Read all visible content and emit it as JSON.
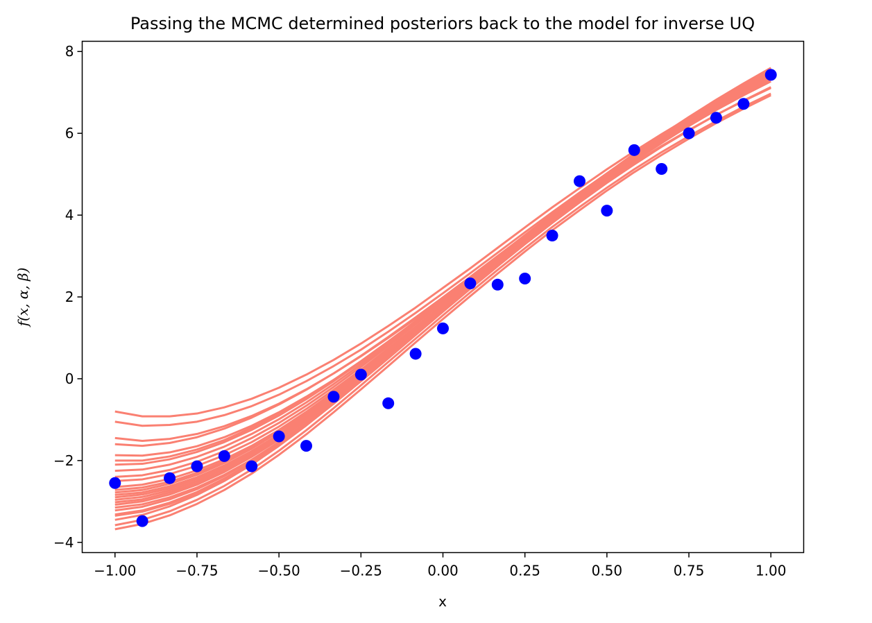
{
  "chart_data": {
    "type": "line",
    "title": "Passing the MCMC determined posteriors back to the model for inverse UQ",
    "xlabel": "x",
    "ylabel": "f(x, α, β)",
    "xlim": [
      -1.1,
      1.1
    ],
    "ylim": [
      -4.25,
      8.25
    ],
    "x_ticks": [
      -1.0,
      -0.75,
      -0.5,
      -0.25,
      0.0,
      0.25,
      0.5,
      0.75,
      1.0
    ],
    "x_tick_labels": [
      "−1.00",
      "−0.75",
      "−0.50",
      "−0.25",
      "0.00",
      "0.25",
      "0.50",
      "0.75",
      "1.00"
    ],
    "y_ticks": [
      -4,
      -2,
      0,
      2,
      4,
      6,
      8
    ],
    "y_tick_labels": [
      "−4",
      "−2",
      "0",
      "2",
      "4",
      "6",
      "8"
    ],
    "grid": false,
    "colors": {
      "posterior_curves": "#fa8072",
      "observations": "#0000ff"
    },
    "x": [
      -1.0,
      -0.9167,
      -0.8333,
      -0.75,
      -0.6667,
      -0.5833,
      -0.5,
      -0.4167,
      -0.3333,
      -0.25,
      -0.1667,
      -0.0833,
      0.0,
      0.0833,
      0.1667,
      0.25,
      0.3333,
      0.4167,
      0.5,
      0.5833,
      0.6667,
      0.75,
      0.8333,
      0.9167,
      1.0
    ],
    "series": [
      {
        "kind": "scatter",
        "values": [
          -2.55,
          -3.48,
          -2.43,
          -2.14,
          -1.89,
          -2.14,
          -1.41,
          -1.64,
          -0.44,
          0.1,
          -0.6,
          0.61,
          1.23,
          2.33,
          2.3,
          2.45,
          3.5,
          4.83,
          4.11,
          5.59,
          5.13,
          6.0,
          6.38,
          6.72,
          7.43
        ]
      },
      {
        "kind": "line",
        "values": [
          -0.8,
          -0.92,
          -0.92,
          -0.85,
          -0.7,
          -0.49,
          -0.22,
          0.1,
          0.46,
          0.86,
          1.29,
          1.74,
          2.22,
          2.7,
          3.2,
          3.7,
          4.19,
          4.66,
          5.12,
          5.56,
          5.98,
          6.38,
          6.76,
          7.12,
          7.46
        ]
      },
      {
        "kind": "line",
        "values": [
          -1.05,
          -1.15,
          -1.13,
          -1.05,
          -0.89,
          -0.67,
          -0.39,
          -0.06,
          0.31,
          0.71,
          1.15,
          1.61,
          2.09,
          2.58,
          3.08,
          3.58,
          4.07,
          4.55,
          5.02,
          5.47,
          5.9,
          6.31,
          6.7,
          7.07,
          7.42
        ]
      },
      {
        "kind": "line",
        "values": [
          -1.45,
          -1.52,
          -1.47,
          -1.35,
          -1.16,
          -0.91,
          -0.61,
          -0.26,
          0.13,
          0.55,
          1.0,
          1.47,
          1.96,
          2.45,
          2.95,
          3.45,
          3.95,
          4.43,
          4.9,
          5.36,
          5.79,
          6.21,
          6.61,
          6.99,
          7.35
        ]
      },
      {
        "kind": "line",
        "values": [
          -1.6,
          -1.64,
          -1.57,
          -1.43,
          -1.22,
          -0.95,
          -0.63,
          -0.27,
          0.13,
          0.56,
          1.02,
          1.5,
          1.99,
          2.49,
          3.0,
          3.5,
          4.0,
          4.49,
          4.97,
          5.43,
          5.88,
          6.31,
          6.72,
          7.11,
          7.48
        ]
      },
      {
        "kind": "line",
        "values": [
          -1.87,
          -1.88,
          -1.8,
          -1.65,
          -1.43,
          -1.15,
          -0.82,
          -0.44,
          -0.03,
          0.41,
          0.88,
          1.37,
          1.87,
          2.38,
          2.89,
          3.4,
          3.91,
          4.41,
          4.9,
          5.38,
          5.84,
          6.28,
          6.71,
          7.12,
          7.5
        ]
      },
      {
        "kind": "line",
        "values": [
          -2.0,
          -2.0,
          -1.9,
          -1.73,
          -1.5,
          -1.2,
          -0.86,
          -0.46,
          -0.03,
          0.43,
          0.91,
          1.41,
          1.93,
          2.45,
          2.97,
          3.49,
          4.0,
          4.5,
          4.99,
          5.46,
          5.91,
          6.34,
          6.75,
          7.14,
          7.5
        ]
      },
      {
        "kind": "line",
        "values": [
          -2.1,
          -2.08,
          -1.97,
          -1.79,
          -1.55,
          -1.25,
          -0.9,
          -0.5,
          -0.06,
          0.41,
          0.9,
          1.41,
          1.93,
          2.46,
          2.99,
          3.51,
          4.02,
          4.52,
          5.0,
          5.46,
          5.9,
          6.32,
          6.71,
          7.08,
          7.42
        ]
      },
      {
        "kind": "line",
        "values": [
          -2.25,
          -2.22,
          -2.1,
          -1.91,
          -1.66,
          -1.35,
          -0.99,
          -0.58,
          -0.13,
          0.35,
          0.85,
          1.37,
          1.9,
          2.44,
          2.97,
          3.5,
          4.02,
          4.53,
          5.02,
          5.5,
          5.96,
          6.4,
          6.82,
          7.22,
          7.6
        ]
      },
      {
        "kind": "line",
        "values": [
          -2.4,
          -2.36,
          -2.23,
          -2.03,
          -1.77,
          -1.45,
          -1.08,
          -0.66,
          -0.2,
          0.29,
          0.8,
          1.33,
          1.87,
          2.41,
          2.95,
          3.48,
          4.0,
          4.51,
          5.0,
          5.47,
          5.92,
          6.35,
          6.76,
          7.15,
          7.52
        ]
      },
      {
        "kind": "line",
        "values": [
          -2.5,
          -2.46,
          -2.33,
          -2.13,
          -1.87,
          -1.55,
          -1.17,
          -0.74,
          -0.27,
          0.22,
          0.74,
          1.27,
          1.81,
          2.35,
          2.89,
          3.42,
          3.94,
          4.45,
          4.94,
          5.42,
          5.88,
          6.32,
          6.74,
          7.14,
          7.52
        ]
      },
      {
        "kind": "line",
        "values": [
          -2.72,
          -2.66,
          -2.52,
          -2.3,
          -2.02,
          -1.68,
          -1.28,
          -0.83,
          -0.35,
          0.16,
          0.69,
          1.23,
          1.78,
          2.33,
          2.87,
          3.41,
          3.93,
          4.44,
          4.93,
          5.41,
          5.86,
          6.3,
          6.71,
          7.1,
          7.47
        ]
      },
      {
        "kind": "line",
        "values": [
          -2.78,
          -2.72,
          -2.57,
          -2.35,
          -2.06,
          -1.71,
          -1.3,
          -0.85,
          -0.36,
          0.16,
          0.7,
          1.25,
          1.8,
          2.36,
          2.91,
          3.45,
          3.98,
          4.49,
          4.99,
          5.47,
          5.93,
          6.37,
          6.79,
          7.19,
          7.56
        ]
      },
      {
        "kind": "line",
        "values": [
          -2.84,
          -2.78,
          -2.63,
          -2.41,
          -2.12,
          -1.77,
          -1.36,
          -0.9,
          -0.41,
          0.11,
          0.65,
          1.2,
          1.76,
          2.31,
          2.86,
          3.4,
          3.93,
          4.44,
          4.94,
          5.41,
          5.87,
          6.31,
          6.72,
          7.11,
          7.48
        ]
      },
      {
        "kind": "line",
        "values": [
          -2.9,
          -2.83,
          -2.68,
          -2.45,
          -2.15,
          -1.79,
          -1.38,
          -0.92,
          -0.42,
          0.1,
          0.64,
          1.19,
          1.75,
          2.3,
          2.85,
          3.39,
          3.91,
          4.42,
          4.91,
          5.38,
          5.83,
          6.26,
          6.66,
          7.04,
          7.4
        ]
      },
      {
        "kind": "line",
        "values": [
          -2.96,
          -2.89,
          -2.73,
          -2.5,
          -2.2,
          -1.84,
          -1.42,
          -0.96,
          -0.46,
          0.06,
          0.61,
          1.16,
          1.72,
          2.28,
          2.83,
          3.37,
          3.9,
          4.41,
          4.91,
          5.38,
          5.84,
          6.27,
          6.68,
          7.07,
          7.43
        ]
      },
      {
        "kind": "line",
        "values": [
          -3.02,
          -2.95,
          -2.78,
          -2.55,
          -2.25,
          -1.88,
          -1.46,
          -0.99,
          -0.49,
          0.04,
          0.58,
          1.14,
          1.7,
          2.26,
          2.81,
          3.35,
          3.87,
          4.38,
          4.87,
          5.34,
          5.79,
          6.22,
          6.62,
          7.0,
          7.36
        ]
      },
      {
        "kind": "line",
        "values": [
          -3.08,
          -3.0,
          -2.83,
          -2.59,
          -2.28,
          -1.91,
          -1.49,
          -1.01,
          -0.5,
          0.03,
          0.58,
          1.14,
          1.7,
          2.26,
          2.81,
          3.35,
          3.88,
          4.39,
          4.88,
          5.35,
          5.8,
          6.23,
          6.63,
          7.02,
          7.38
        ]
      },
      {
        "kind": "line",
        "values": [
          -3.15,
          -3.07,
          -2.9,
          -2.66,
          -2.35,
          -1.98,
          -1.55,
          -1.07,
          -0.56,
          -0.02,
          0.53,
          1.09,
          1.66,
          2.22,
          2.78,
          3.32,
          3.85,
          4.36,
          4.85,
          5.32,
          5.76,
          6.19,
          6.59,
          6.97,
          7.32
        ]
      },
      {
        "kind": "line",
        "values": [
          -3.22,
          -3.13,
          -2.95,
          -2.7,
          -2.38,
          -2.0,
          -1.56,
          -1.07,
          -0.55,
          -0.01,
          0.55,
          1.12,
          1.69,
          2.26,
          2.82,
          3.37,
          3.9,
          4.41,
          4.9,
          5.37,
          5.82,
          6.24,
          6.65,
          7.03,
          7.39
        ]
      },
      {
        "kind": "line",
        "values": [
          -3.32,
          -3.22,
          -3.03,
          -2.77,
          -2.44,
          -2.05,
          -1.6,
          -1.11,
          -0.58,
          -0.03,
          0.53,
          1.1,
          1.67,
          2.24,
          2.8,
          3.34,
          3.87,
          4.38,
          4.87,
          5.33,
          5.77,
          6.18,
          6.57,
          6.93,
          7.27
        ]
      },
      {
        "kind": "line",
        "values": [
          -3.45,
          -3.33,
          -3.12,
          -2.84,
          -2.5,
          -2.1,
          -1.64,
          -1.14,
          -0.6,
          -0.04,
          0.53,
          1.1,
          1.67,
          2.24,
          2.79,
          3.33,
          3.85,
          4.35,
          4.82,
          5.27,
          5.69,
          6.08,
          6.45,
          6.79,
          7.11
        ]
      },
      {
        "kind": "line",
        "values": [
          -3.58,
          -3.45,
          -3.24,
          -2.96,
          -2.62,
          -2.22,
          -1.76,
          -1.26,
          -0.72,
          -0.16,
          0.41,
          0.98,
          1.55,
          2.11,
          2.66,
          3.19,
          3.71,
          4.2,
          4.67,
          5.12,
          5.54,
          5.93,
          6.3,
          6.65,
          6.97
        ]
      },
      {
        "kind": "line",
        "values": [
          -3.68,
          -3.55,
          -3.34,
          -3.06,
          -2.72,
          -2.32,
          -1.86,
          -1.36,
          -0.82,
          -0.26,
          0.31,
          0.89,
          1.46,
          2.02,
          2.57,
          3.11,
          3.63,
          4.12,
          4.6,
          5.05,
          5.47,
          5.87,
          6.25,
          6.6,
          6.93
        ]
      },
      {
        "kind": "line",
        "values": [
          -2.65,
          -2.59,
          -2.45,
          -2.24,
          -1.97,
          -1.64,
          -1.25,
          -0.81,
          -0.33,
          0.17,
          0.69,
          1.22,
          1.76,
          2.3,
          2.83,
          3.36,
          3.87,
          4.37,
          4.85,
          5.32,
          5.77,
          6.19,
          6.6,
          6.98,
          7.35
        ]
      },
      {
        "kind": "line",
        "values": [
          -3.35,
          -3.25,
          -3.06,
          -2.8,
          -2.47,
          -2.08,
          -1.63,
          -1.14,
          -0.61,
          -0.06,
          0.5,
          1.07,
          1.64,
          2.2,
          2.75,
          3.29,
          3.81,
          4.31,
          4.79,
          5.24,
          5.67,
          6.07,
          6.45,
          6.8,
          7.13
        ]
      }
    ]
  }
}
